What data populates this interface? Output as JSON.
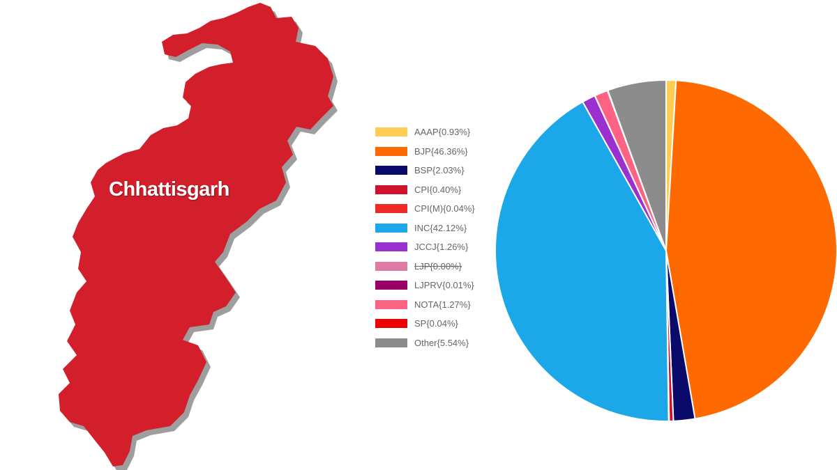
{
  "map": {
    "label": "Chhattisgarh",
    "fill_color": "#d31f2b",
    "shadow_color": "#9e9e9e"
  },
  "chart_data": {
    "type": "pie",
    "title": "",
    "legend_position": "left",
    "start_angle_deg": 0,
    "direction": "clockwise",
    "slices": [
      {
        "label": "AAAP{0.93%}",
        "party": "AAAP",
        "value": 0.93,
        "color": "#ffcd56",
        "hidden": false
      },
      {
        "label": "BJP{46.36%}",
        "party": "BJP",
        "value": 46.36,
        "color": "#ff6a00",
        "hidden": false
      },
      {
        "label": "BSP{2.03%}",
        "party": "BSP",
        "value": 2.03,
        "color": "#0a0a6b",
        "hidden": false
      },
      {
        "label": "CPI{0.40%}",
        "party": "CPI",
        "value": 0.4,
        "color": "#d0112b",
        "hidden": false
      },
      {
        "label": "CPI(M){0.04%}",
        "party": "CPI(M)",
        "value": 0.04,
        "color": "#ee2a24",
        "hidden": false
      },
      {
        "label": "INC{42.12%}",
        "party": "INC",
        "value": 42.12,
        "color": "#1ba7e8",
        "hidden": false
      },
      {
        "label": "JCCJ{1.26%}",
        "party": "JCCJ",
        "value": 1.26,
        "color": "#9b30d0",
        "hidden": false
      },
      {
        "label": "LJP{0.00%}",
        "party": "LJP",
        "value": 0.0,
        "color": "#e07ba6",
        "hidden": true
      },
      {
        "label": "LJPRV{0.01%}",
        "party": "LJPRV",
        "value": 0.01,
        "color": "#990066",
        "hidden": false
      },
      {
        "label": "NOTA{1.27%}",
        "party": "NOTA",
        "value": 1.27,
        "color": "#ff6384",
        "hidden": false
      },
      {
        "label": "SP{0.04%}",
        "party": "SP",
        "value": 0.04,
        "color": "#ee0000",
        "hidden": false
      },
      {
        "label": "Other{5.54%}",
        "party": "Other",
        "value": 5.54,
        "color": "#8c8c8c",
        "hidden": false
      }
    ]
  }
}
